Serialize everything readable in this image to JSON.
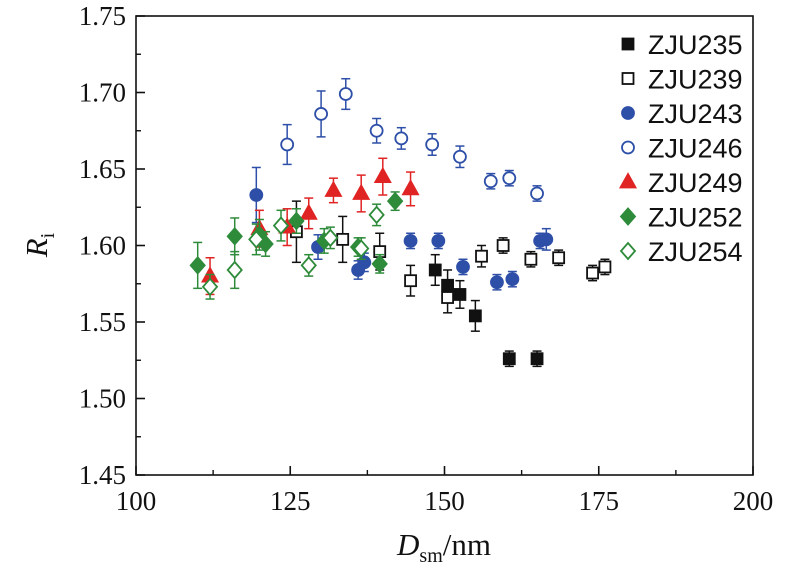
{
  "chart_data": {
    "type": "scatter",
    "xlabel": {
      "main": "D",
      "sub": "sm",
      "unit": "/nm"
    },
    "ylabel": {
      "main": "R",
      "sub": "i"
    },
    "xlim": [
      100,
      200
    ],
    "ylim": [
      1.45,
      1.75
    ],
    "xticks": [
      100,
      125,
      150,
      175,
      200
    ],
    "yticks": [
      1.45,
      1.5,
      1.55,
      1.6,
      1.65,
      1.7,
      1.75
    ],
    "xtick_labels": [
      "100",
      "125",
      "150",
      "175",
      "200"
    ],
    "ytick_labels": [
      "1.45",
      "1.50",
      "1.55",
      "1.60",
      "1.65",
      "1.70",
      "1.75"
    ],
    "grid": false,
    "legend_position": "top-right",
    "series": [
      {
        "name": "ZJU235",
        "marker": "square",
        "filled": true,
        "color": "#111111",
        "points": [
          {
            "x": 148.5,
            "y": 1.584,
            "err": 0.01
          },
          {
            "x": 150.5,
            "y": 1.574,
            "err": 0.01
          },
          {
            "x": 152.5,
            "y": 1.568,
            "err": 0.009
          },
          {
            "x": 155.0,
            "y": 1.554,
            "err": 0.01
          },
          {
            "x": 160.5,
            "y": 1.526,
            "err": 0.005
          },
          {
            "x": 165.0,
            "y": 1.526,
            "err": 0.005
          }
        ]
      },
      {
        "name": "ZJU239",
        "marker": "square",
        "filled": false,
        "color": "#111111",
        "points": [
          {
            "x": 126.0,
            "y": 1.609,
            "err": 0.02
          },
          {
            "x": 133.5,
            "y": 1.604,
            "err": 0.015
          },
          {
            "x": 139.5,
            "y": 1.596,
            "err": 0.012
          },
          {
            "x": 144.5,
            "y": 1.577,
            "err": 0.01
          },
          {
            "x": 150.5,
            "y": 1.566,
            "err": 0.01
          },
          {
            "x": 156.0,
            "y": 1.593,
            "err": 0.007
          },
          {
            "x": 159.5,
            "y": 1.6,
            "err": 0.005
          },
          {
            "x": 164.0,
            "y": 1.591,
            "err": 0.005
          },
          {
            "x": 168.5,
            "y": 1.592,
            "err": 0.005
          },
          {
            "x": 174.0,
            "y": 1.582,
            "err": 0.005
          },
          {
            "x": 176.0,
            "y": 1.586,
            "err": 0.005
          }
        ]
      },
      {
        "name": "ZJU243",
        "marker": "circle",
        "filled": true,
        "color": "#2e4fa8",
        "points": [
          {
            "x": 119.5,
            "y": 1.633,
            "err": 0.018
          },
          {
            "x": 129.5,
            "y": 1.599,
            "err": 0.008
          },
          {
            "x": 136.0,
            "y": 1.584,
            "err": 0.006
          },
          {
            "x": 137.0,
            "y": 1.589,
            "err": 0.006
          },
          {
            "x": 144.5,
            "y": 1.603,
            "err": 0.005
          },
          {
            "x": 149.0,
            "y": 1.603,
            "err": 0.005
          },
          {
            "x": 153.0,
            "y": 1.586,
            "err": 0.005
          },
          {
            "x": 158.5,
            "y": 1.576,
            "err": 0.005
          },
          {
            "x": 161.0,
            "y": 1.578,
            "err": 0.005
          },
          {
            "x": 165.5,
            "y": 1.603,
            "err": 0.005
          },
          {
            "x": 166.5,
            "y": 1.604,
            "err": 0.007
          }
        ]
      },
      {
        "name": "ZJU246",
        "marker": "circle",
        "filled": false,
        "color": "#2e4fa8",
        "points": [
          {
            "x": 124.5,
            "y": 1.666,
            "err": 0.013
          },
          {
            "x": 130.0,
            "y": 1.686,
            "err": 0.015
          },
          {
            "x": 134.0,
            "y": 1.699,
            "err": 0.01
          },
          {
            "x": 139.0,
            "y": 1.675,
            "err": 0.008
          },
          {
            "x": 143.0,
            "y": 1.67,
            "err": 0.007
          },
          {
            "x": 148.0,
            "y": 1.666,
            "err": 0.007
          },
          {
            "x": 152.5,
            "y": 1.658,
            "err": 0.007
          },
          {
            "x": 157.5,
            "y": 1.642,
            "err": 0.005
          },
          {
            "x": 160.5,
            "y": 1.644,
            "err": 0.005
          },
          {
            "x": 165.0,
            "y": 1.634,
            "err": 0.005
          }
        ]
      },
      {
        "name": "ZJU249",
        "marker": "triangle",
        "filled": true,
        "color": "#e02424",
        "points": [
          {
            "x": 112.0,
            "y": 1.58,
            "err": 0.012
          },
          {
            "x": 120.0,
            "y": 1.611,
            "err": 0.012
          },
          {
            "x": 124.5,
            "y": 1.612,
            "err": 0.012
          },
          {
            "x": 128.0,
            "y": 1.621,
            "err": 0.01
          },
          {
            "x": 132.0,
            "y": 1.636,
            "err": 0.008
          },
          {
            "x": 136.5,
            "y": 1.634,
            "err": 0.012
          },
          {
            "x": 140.0,
            "y": 1.645,
            "err": 0.012
          },
          {
            "x": 144.5,
            "y": 1.637,
            "err": 0.011
          }
        ]
      },
      {
        "name": "ZJU252",
        "marker": "diamond",
        "filled": true,
        "color": "#2e8b3a",
        "points": [
          {
            "x": 110.0,
            "y": 1.587,
            "err": 0.015
          },
          {
            "x": 116.0,
            "y": 1.606,
            "err": 0.012
          },
          {
            "x": 120.0,
            "y": 1.607,
            "err": 0.01
          },
          {
            "x": 121.0,
            "y": 1.601,
            "err": 0.008
          },
          {
            "x": 126.0,
            "y": 1.616,
            "err": 0.008
          },
          {
            "x": 130.5,
            "y": 1.603,
            "err": 0.008
          },
          {
            "x": 136.0,
            "y": 1.599,
            "err": 0.006
          },
          {
            "x": 139.5,
            "y": 1.588,
            "err": 0.006
          },
          {
            "x": 142.0,
            "y": 1.629,
            "err": 0.006
          }
        ]
      },
      {
        "name": "ZJU254",
        "marker": "diamond",
        "filled": false,
        "color": "#2e8b3a",
        "points": [
          {
            "x": 112.0,
            "y": 1.573,
            "err": 0.008
          },
          {
            "x": 116.0,
            "y": 1.584,
            "err": 0.012
          },
          {
            "x": 119.5,
            "y": 1.604,
            "err": 0.01
          },
          {
            "x": 123.5,
            "y": 1.613,
            "err": 0.01
          },
          {
            "x": 128.0,
            "y": 1.587,
            "err": 0.007
          },
          {
            "x": 131.5,
            "y": 1.605,
            "err": 0.007
          },
          {
            "x": 136.5,
            "y": 1.598,
            "err": 0.007
          },
          {
            "x": 139.0,
            "y": 1.62,
            "err": 0.007
          }
        ]
      }
    ]
  }
}
